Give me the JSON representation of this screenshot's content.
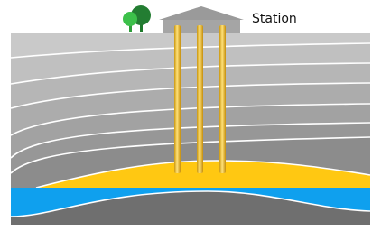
{
  "station": {
    "label": "Station"
  }
}
